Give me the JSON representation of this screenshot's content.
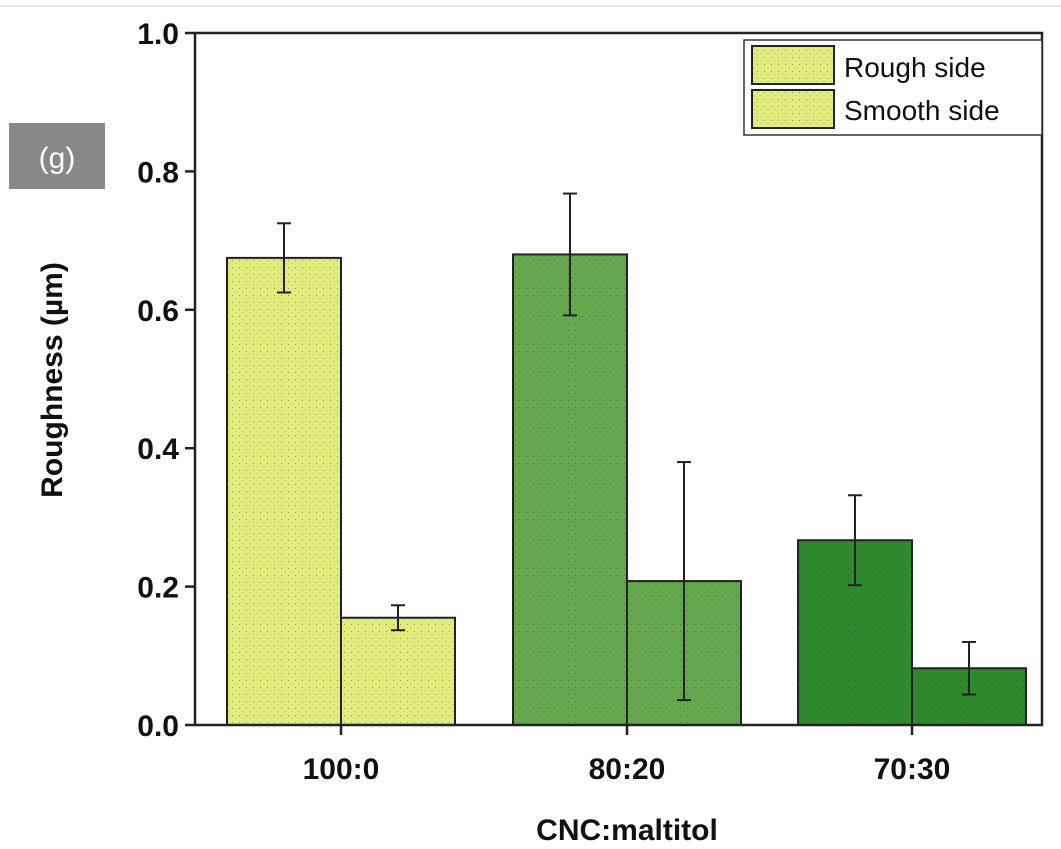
{
  "panel_label": "(g)",
  "chart_data": {
    "type": "bar",
    "categories": [
      "100:0",
      "80:20",
      "70:30"
    ],
    "series": [
      {
        "name": "Rough side",
        "values": [
          0.675,
          0.68,
          0.267
        ],
        "errors": [
          0.05,
          0.088,
          0.065
        ]
      },
      {
        "name": "Smooth side",
        "values": [
          0.155,
          0.208,
          0.082
        ],
        "errors": [
          0.018,
          0.172,
          0.038
        ]
      }
    ],
    "bar_colors": [
      [
        "#e2ec7c",
        "#e2ec7c"
      ],
      [
        "#66a84e",
        "#66a84e"
      ],
      [
        "#2f8a2e",
        "#2f8a2e"
      ]
    ],
    "xlabel": "CNC:maltitol",
    "ylabel": "Roughness (µm)",
    "ylim": [
      0,
      1.0
    ],
    "yticks": [
      0.0,
      0.2,
      0.4,
      0.6,
      0.8,
      1.0
    ],
    "ytick_labels": [
      "0.0",
      "0.2",
      "0.4",
      "0.6",
      "0.8",
      "1.0"
    ],
    "legend": {
      "entries": [
        "Rough side",
        "Smooth side"
      ],
      "swatch_color": "#e2ec7c",
      "placement": "top-right"
    },
    "grid": false
  }
}
